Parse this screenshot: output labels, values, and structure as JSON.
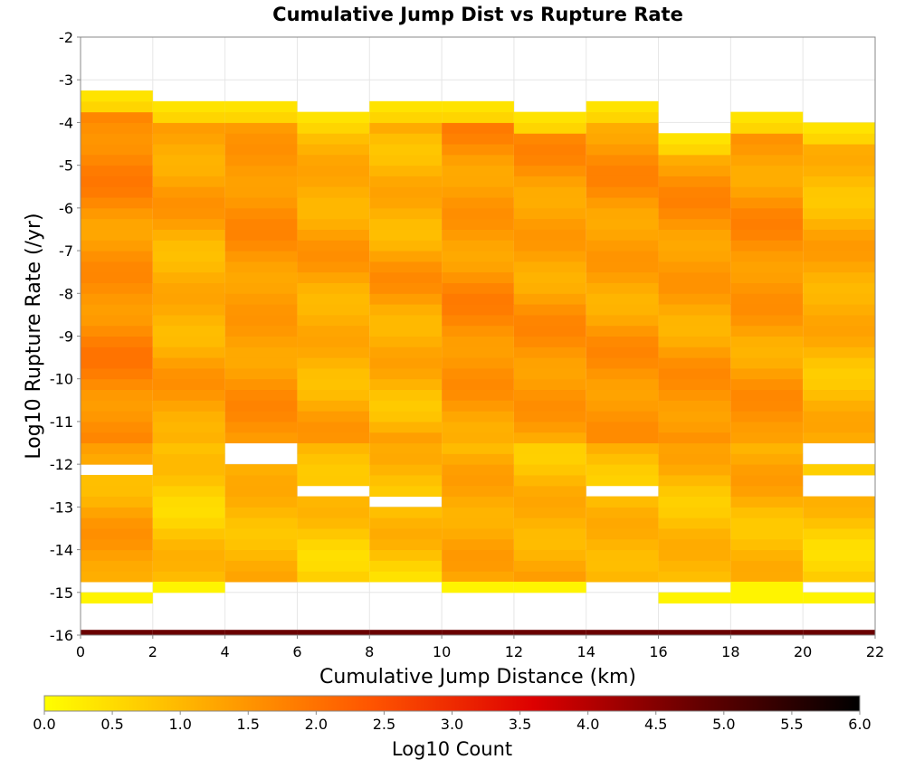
{
  "chart_data": {
    "type": "heatmap",
    "title": "Cumulative Jump Dist vs Rupture Rate",
    "xlabel": "Cumulative Jump Distance (km)",
    "ylabel": "Log10 Rupture Rate (/yr)",
    "xlim": [
      0,
      22
    ],
    "ylim": [
      -16,
      -2
    ],
    "x_ticks": [
      "0",
      "2",
      "4",
      "6",
      "8",
      "10",
      "12",
      "14",
      "16",
      "18",
      "20",
      "22"
    ],
    "y_ticks": [
      "-16",
      "-15",
      "-14",
      "-13",
      "-12",
      "-11",
      "-10",
      "-9",
      "-8",
      "-7",
      "-6",
      "-5",
      "-4",
      "-3",
      "-2"
    ],
    "grid": true,
    "x_bin_width": 2,
    "y_bin_height": 0.25,
    "colorbar": {
      "label": "Log10 Count",
      "range": [
        0.0,
        6.0
      ],
      "ticks": [
        "0.0",
        "0.5",
        "1.0",
        "1.5",
        "2.0",
        "2.5",
        "3.0",
        "3.5",
        "4.0",
        "4.5",
        "5.0",
        "5.5",
        "6.0"
      ],
      "colormap": [
        "#ffff00",
        "#ffaa00",
        "#ff5500",
        "#dd0000",
        "#660000",
        "#000000"
      ]
    },
    "note_bottom_row": "y bin [-16,-15.75] is dark red across all x",
    "columns": [
      {
        "x": 1,
        "y_top": -3.25,
        "mean": 1.6,
        "amp": 0.25,
        "holes": [
          -12.25
        ],
        "bottom_rows": [
          -15.25
        ]
      },
      {
        "x": 3,
        "y_top": -3.5,
        "mean": 1.2,
        "amp": 0.25,
        "holes": [],
        "bottom_rows": [
          -15.0
        ]
      },
      {
        "x": 5,
        "y_top": -3.5,
        "mean": 1.45,
        "amp": 0.2,
        "holes": [
          -11.75,
          -12.0
        ],
        "bottom_rows": []
      },
      {
        "x": 7,
        "y_top": -3.75,
        "mean": 1.2,
        "amp": 0.25,
        "holes": [
          -12.75
        ],
        "bottom_rows": []
      },
      {
        "x": 9,
        "y_top": -3.5,
        "mean": 1.2,
        "amp": 0.3,
        "holes": [
          -13.0
        ],
        "bottom_rows": []
      },
      {
        "x": 11,
        "y_top": -3.5,
        "mean": 1.5,
        "amp": 0.25,
        "holes": [],
        "bottom_rows": [
          -15.0
        ]
      },
      {
        "x": 13,
        "y_top": -3.75,
        "mean": 1.4,
        "amp": 0.25,
        "holes": [],
        "bottom_rows": [
          -15.0
        ]
      },
      {
        "x": 15,
        "y_top": -3.5,
        "mean": 1.4,
        "amp": 0.25,
        "holes": [
          -12.75
        ],
        "bottom_rows": []
      },
      {
        "x": 17,
        "y_top": -4.25,
        "mean": 1.4,
        "amp": 0.25,
        "holes": [],
        "bottom_rows": [
          -15.25
        ]
      },
      {
        "x": 19,
        "y_top": -3.75,
        "mean": 1.45,
        "amp": 0.25,
        "holes": [],
        "bottom_rows": [
          -15.0,
          -15.25
        ]
      },
      {
        "x": 21,
        "y_top": -4.0,
        "mean": 1.1,
        "amp": 0.25,
        "holes": [
          -11.75,
          -12.0,
          -12.5,
          -12.75
        ],
        "bottom_rows": [
          -15.25
        ]
      }
    ]
  }
}
